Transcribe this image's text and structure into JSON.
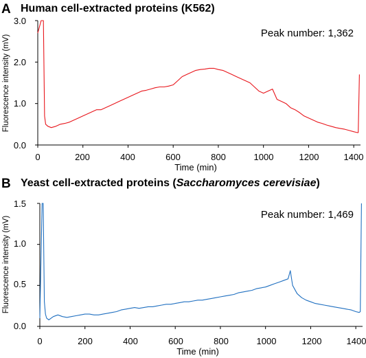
{
  "chart_data": [
    {
      "type": "line",
      "panel_label": "A",
      "title": "Human cell-extracted proteins (K562)",
      "xlabel": "Time (min)",
      "ylabel": "Fluorescence intensity (mV)",
      "xlim": [
        0,
        1430
      ],
      "ylim": [
        0,
        3.0
      ],
      "xticks": [
        "0",
        "200",
        "400",
        "600",
        "800",
        "1000",
        "1200",
        "1400"
      ],
      "yticks": [
        "0.0",
        "1.0",
        "2.0",
        "3.0"
      ],
      "annotation": "Peak number: 1,362",
      "color": "#e8151b",
      "series": [
        {
          "x": [
            0,
            15,
            20,
            25,
            30,
            35,
            45,
            60,
            80,
            100,
            120,
            140,
            160,
            180,
            200,
            220,
            240,
            260,
            280,
            300,
            320,
            340,
            360,
            380,
            400,
            420,
            440,
            460,
            480,
            500,
            520,
            540,
            560,
            580,
            600,
            620,
            640,
            660,
            680,
            700,
            720,
            740,
            760,
            780,
            800,
            820,
            840,
            860,
            880,
            900,
            920,
            940,
            960,
            980,
            1000,
            1020,
            1040,
            1060,
            1080,
            1100,
            1120,
            1140,
            1160,
            1180,
            1200,
            1220,
            1240,
            1260,
            1280,
            1300,
            1320,
            1340,
            1360,
            1380,
            1400,
            1415,
            1420,
            1425
          ],
          "y": [
            2.7,
            3.0,
            3.0,
            3.0,
            0.7,
            0.5,
            0.45,
            0.42,
            0.45,
            0.5,
            0.52,
            0.55,
            0.6,
            0.65,
            0.7,
            0.75,
            0.8,
            0.85,
            0.85,
            0.9,
            0.95,
            1.0,
            1.05,
            1.1,
            1.15,
            1.2,
            1.25,
            1.3,
            1.32,
            1.35,
            1.38,
            1.4,
            1.4,
            1.42,
            1.45,
            1.55,
            1.65,
            1.7,
            1.75,
            1.8,
            1.82,
            1.83,
            1.85,
            1.85,
            1.82,
            1.8,
            1.75,
            1.7,
            1.65,
            1.6,
            1.55,
            1.5,
            1.4,
            1.3,
            1.25,
            1.3,
            1.35,
            1.1,
            1.05,
            1.0,
            0.9,
            0.85,
            0.78,
            0.7,
            0.65,
            0.6,
            0.55,
            0.52,
            0.48,
            0.45,
            0.42,
            0.4,
            0.38,
            0.35,
            0.32,
            0.3,
            0.3,
            1.7
          ]
        }
      ]
    },
    {
      "type": "line",
      "panel_label": "B",
      "title_prefix": "Yeast cell-extracted proteins (",
      "title_italic": "Saccharomyces cerevisiae",
      "title_suffix": ")",
      "xlabel": "Time (min)",
      "ylabel": "Fluorescence intensity (mV)",
      "xlim": [
        0,
        1430
      ],
      "ylim": [
        0,
        1.5
      ],
      "xticks": [
        "0",
        "200",
        "400",
        "600",
        "800",
        "1000",
        "1200",
        "1400"
      ],
      "yticks": [
        "0.0",
        "0.5",
        "1.0",
        "1.5"
      ],
      "annotation": "Peak number: 1,469",
      "color": "#1f6fc0",
      "series": [
        {
          "x": [
            0,
            10,
            15,
            20,
            25,
            30,
            40,
            50,
            60,
            80,
            100,
            120,
            140,
            160,
            180,
            200,
            220,
            240,
            260,
            280,
            300,
            320,
            340,
            360,
            380,
            400,
            420,
            440,
            460,
            480,
            500,
            520,
            540,
            560,
            580,
            600,
            620,
            640,
            660,
            680,
            700,
            720,
            740,
            760,
            780,
            800,
            820,
            840,
            860,
            880,
            900,
            920,
            940,
            960,
            980,
            1000,
            1020,
            1040,
            1060,
            1080,
            1100,
            1110,
            1120,
            1140,
            1160,
            1180,
            1200,
            1220,
            1240,
            1260,
            1280,
            1300,
            1320,
            1340,
            1360,
            1380,
            1400,
            1415,
            1420,
            1425
          ],
          "y": [
            0.1,
            1.5,
            1.5,
            0.3,
            0.15,
            0.1,
            0.08,
            0.1,
            0.12,
            0.14,
            0.12,
            0.11,
            0.12,
            0.13,
            0.14,
            0.15,
            0.15,
            0.14,
            0.14,
            0.15,
            0.16,
            0.17,
            0.18,
            0.2,
            0.21,
            0.22,
            0.23,
            0.22,
            0.23,
            0.24,
            0.24,
            0.25,
            0.26,
            0.27,
            0.27,
            0.28,
            0.29,
            0.3,
            0.3,
            0.31,
            0.32,
            0.32,
            0.33,
            0.34,
            0.35,
            0.36,
            0.37,
            0.38,
            0.39,
            0.41,
            0.42,
            0.43,
            0.44,
            0.46,
            0.47,
            0.48,
            0.5,
            0.52,
            0.54,
            0.56,
            0.58,
            0.68,
            0.5,
            0.4,
            0.35,
            0.32,
            0.3,
            0.28,
            0.27,
            0.26,
            0.25,
            0.24,
            0.23,
            0.22,
            0.21,
            0.2,
            0.18,
            0.17,
            0.18,
            1.5
          ]
        }
      ]
    }
  ]
}
